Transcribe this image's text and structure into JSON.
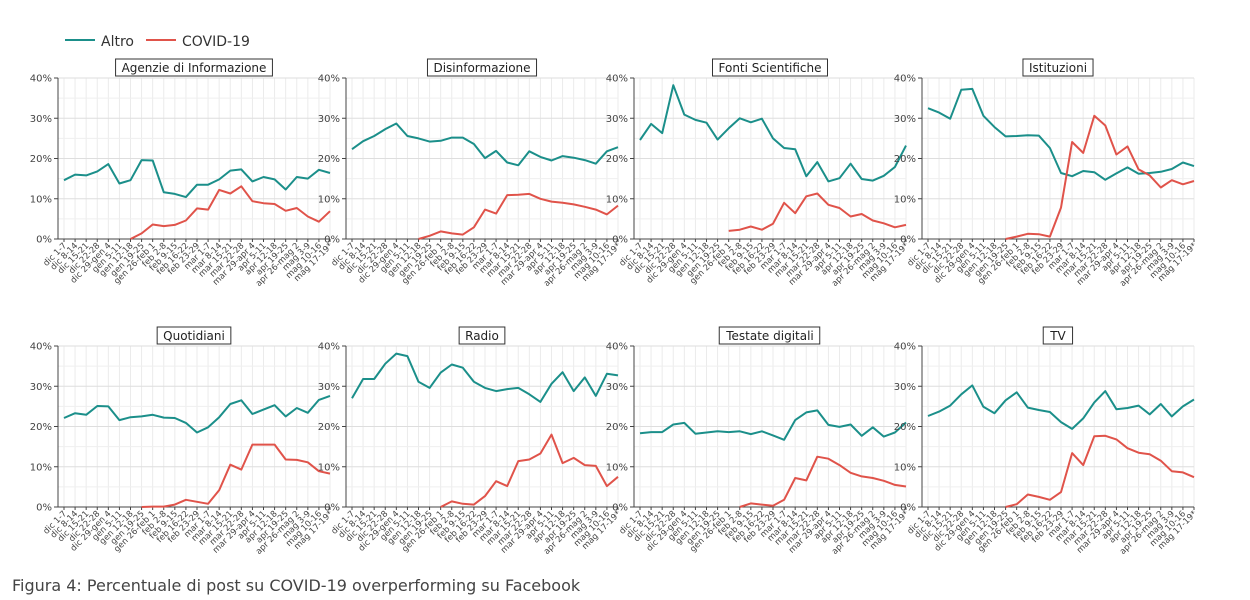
{
  "caption": "Figura 4: Percentuale di post su COVID-19 overperforming su Facebook",
  "legend": {
    "items": [
      {
        "label": "Altro",
        "color": "#1b8f8a"
      },
      {
        "label": "COVID-19",
        "color": "#e0534a"
      }
    ]
  },
  "axes": {
    "y_ticks": [
      "0%",
      "10%",
      "20%",
      "30%",
      "40%"
    ],
    "ylim": [
      0,
      40
    ],
    "x_ticks": [
      "dic 1-7",
      "dic 8-14",
      "dic 15-21",
      "dic 22-28",
      "dic 29-gen 4",
      "gen 5-11",
      "gen 12-18",
      "gen 19-25",
      "gen 26-feb 1",
      "feb 2-8",
      "feb 9-15",
      "feb 16-22",
      "feb 23-29",
      "mar 1-7",
      "mar 8-14",
      "mar 15-21",
      "mar 22-28",
      "mar 29-apr 4",
      "apr 5-11",
      "apr 12-18",
      "apr 19-25",
      "apr 26-mag 2",
      "mag 3-9",
      "mag 10-16",
      "mag 17-19*"
    ]
  },
  "chart_data": [
    {
      "type": "line",
      "title": "Agenzie di Informazione",
      "series": [
        {
          "name": "Altro",
          "values": [
            14.6,
            16.0,
            15.8,
            16.8,
            18.6,
            13.8,
            14.6,
            19.6,
            19.5,
            11.6,
            11.2,
            10.4,
            13.5,
            13.5,
            14.8,
            17.0,
            17.3,
            14.3,
            15.4,
            14.8,
            12.3,
            15.4,
            15.0,
            17.2,
            16.4
          ]
        },
        {
          "name": "COVID-19",
          "values": [
            null,
            null,
            null,
            null,
            null,
            null,
            0.0,
            1.4,
            3.6,
            3.2,
            3.5,
            4.6,
            7.6,
            7.3,
            12.2,
            11.3,
            13.1,
            9.4,
            8.9,
            8.7,
            7.0,
            7.7,
            5.6,
            4.3,
            6.9
          ]
        }
      ]
    },
    {
      "type": "line",
      "title": "Disinformazione",
      "series": [
        {
          "name": "Altro",
          "values": [
            22.3,
            24.3,
            25.6,
            27.3,
            28.7,
            25.6,
            25.0,
            24.2,
            24.4,
            25.2,
            25.2,
            23.6,
            20.1,
            21.9,
            19.0,
            18.3,
            21.8,
            20.4,
            19.5,
            20.6,
            20.2,
            19.6,
            18.7,
            21.8,
            22.8
          ]
        },
        {
          "name": "COVID-19",
          "values": [
            null,
            null,
            null,
            null,
            null,
            null,
            0.0,
            0.8,
            1.9,
            1.4,
            1.1,
            2.9,
            7.3,
            6.3,
            10.9,
            11.0,
            11.2,
            10.0,
            9.3,
            9.0,
            8.6,
            8.0,
            7.3,
            6.1,
            8.3
          ]
        }
      ]
    },
    {
      "type": "line",
      "title": "Fonti Scientifiche",
      "series": [
        {
          "name": "Altro",
          "values": [
            24.6,
            28.6,
            26.3,
            38.2,
            30.9,
            29.6,
            28.9,
            24.7,
            27.5,
            30.0,
            29.0,
            29.9,
            25.0,
            22.6,
            22.3,
            15.6,
            19.1,
            14.3,
            15.1,
            18.7,
            14.9,
            14.5,
            15.7,
            17.9,
            23.2
          ]
        },
        {
          "name": "COVID-19",
          "values": [
            null,
            null,
            null,
            null,
            null,
            null,
            null,
            null,
            2.0,
            2.3,
            3.1,
            2.3,
            3.8,
            9.0,
            6.4,
            10.6,
            11.3,
            8.5,
            7.7,
            5.6,
            6.2,
            4.6,
            3.9,
            2.9,
            3.5
          ]
        }
      ]
    },
    {
      "type": "line",
      "title": "Istituzioni",
      "series": [
        {
          "name": "Altro",
          "values": [
            32.5,
            31.4,
            29.9,
            37.1,
            37.3,
            30.6,
            27.8,
            25.5,
            25.6,
            25.8,
            25.7,
            22.6,
            16.4,
            15.6,
            16.9,
            16.6,
            14.7,
            16.3,
            17.8,
            16.2,
            16.4,
            16.7,
            17.4,
            19.0,
            18.1
          ]
        },
        {
          "name": "COVID-19",
          "values": [
            null,
            null,
            null,
            null,
            null,
            null,
            null,
            0.0,
            0.6,
            1.3,
            1.2,
            0.6,
            7.8,
            24.1,
            21.4,
            30.6,
            28.2,
            21.0,
            23.0,
            17.3,
            15.8,
            12.8,
            14.6,
            13.6,
            14.4
          ]
        }
      ]
    },
    {
      "type": "line",
      "title": "Quotidiani",
      "series": [
        {
          "name": "Altro",
          "values": [
            22.1,
            23.3,
            22.9,
            25.1,
            25.0,
            21.6,
            22.3,
            22.5,
            22.9,
            22.2,
            22.1,
            20.9,
            18.5,
            19.8,
            22.3,
            25.6,
            26.5,
            23.1,
            24.2,
            25.3,
            22.5,
            24.6,
            23.4,
            26.6,
            27.6
          ]
        },
        {
          "name": "COVID-19",
          "values": [
            null,
            null,
            null,
            null,
            null,
            null,
            null,
            0.0,
            0.1,
            0.1,
            0.6,
            1.8,
            1.3,
            0.8,
            4.2,
            10.5,
            9.3,
            15.5,
            15.5,
            15.5,
            11.8,
            11.7,
            11.1,
            8.9,
            8.3
          ]
        }
      ]
    },
    {
      "type": "line",
      "title": "Radio",
      "series": [
        {
          "name": "Altro",
          "values": [
            27.0,
            31.8,
            31.8,
            35.6,
            38.1,
            37.5,
            31.1,
            29.6,
            33.4,
            35.4,
            34.6,
            31.1,
            29.6,
            28.8,
            29.3,
            29.6,
            28.0,
            26.1,
            30.6,
            33.5,
            28.8,
            32.2,
            27.6,
            33.1,
            32.7
          ]
        },
        {
          "name": "COVID-19",
          "values": [
            null,
            null,
            null,
            null,
            null,
            null,
            null,
            null,
            0.0,
            1.4,
            0.8,
            0.6,
            2.7,
            6.4,
            5.2,
            11.4,
            11.8,
            13.3,
            18.0,
            10.9,
            12.2,
            10.4,
            10.2,
            5.2,
            7.5
          ]
        }
      ]
    },
    {
      "type": "line",
      "title": "Testate digitali",
      "series": [
        {
          "name": "Altro",
          "values": [
            18.3,
            18.6,
            18.6,
            20.5,
            20.9,
            18.2,
            18.5,
            18.8,
            18.6,
            18.8,
            18.1,
            18.8,
            17.8,
            16.7,
            21.6,
            23.5,
            24.0,
            20.4,
            19.9,
            20.5,
            17.7,
            19.8,
            17.5,
            18.5,
            21.0
          ]
        },
        {
          "name": "COVID-19",
          "values": [
            null,
            null,
            null,
            null,
            null,
            null,
            null,
            null,
            null,
            0.0,
            0.9,
            0.6,
            0.3,
            1.8,
            7.2,
            6.6,
            12.5,
            12.0,
            10.4,
            8.5,
            7.6,
            7.2,
            6.5,
            5.5,
            5.1
          ]
        }
      ]
    },
    {
      "type": "line",
      "title": "TV",
      "series": [
        {
          "name": "Altro",
          "values": [
            22.6,
            23.7,
            25.2,
            28.0,
            30.2,
            24.9,
            23.3,
            26.5,
            28.5,
            24.7,
            24.1,
            23.6,
            21.1,
            19.4,
            22.0,
            26.0,
            28.8,
            24.3,
            24.6,
            25.2,
            23.0,
            25.6,
            22.5,
            25.0,
            26.7
          ]
        },
        {
          "name": "COVID-19",
          "values": [
            null,
            null,
            null,
            null,
            null,
            null,
            null,
            0.0,
            0.7,
            3.1,
            2.5,
            1.8,
            3.7,
            13.4,
            10.4,
            17.6,
            17.7,
            16.8,
            14.6,
            13.5,
            13.1,
            11.5,
            8.9,
            8.6,
            7.4
          ]
        }
      ]
    }
  ]
}
